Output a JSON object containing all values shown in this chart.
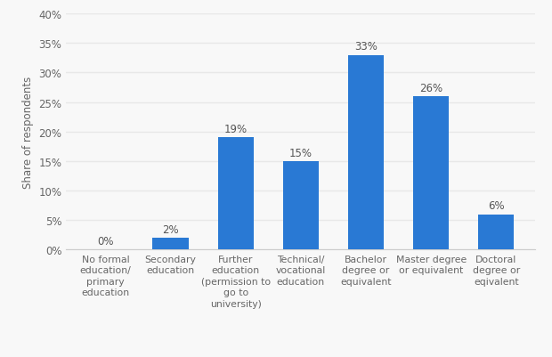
{
  "categories": [
    "No formal\neducation/\nprimary\neducation",
    "Secondary\neducation",
    "Further\neducation\n(permission to\ngo to\nuniversity)",
    "Technical/\nvocational\neducation",
    "Bachelor\ndegree or\nequivalent",
    "Master degree\nor equivalent",
    "Doctoral\ndegree or\neqivalent"
  ],
  "values": [
    0,
    2,
    19,
    15,
    33,
    26,
    6
  ],
  "bar_color": "#2979d4",
  "ylabel": "Share of respondents",
  "ylim": [
    0,
    40
  ],
  "yticks": [
    0,
    5,
    10,
    15,
    20,
    25,
    30,
    35,
    40
  ],
  "ytick_labels": [
    "0%",
    "5%",
    "10%",
    "15%",
    "20%",
    "25%",
    "30%",
    "35%",
    "40%"
  ],
  "label_fontsize": 8.5,
  "bar_label_fontsize": 8.5,
  "xlabel_fontsize": 7.8,
  "ylabel_fontsize": 8.5,
  "background_color": "#f8f8f8",
  "grid_color": "#e8e8e8",
  "bar_width": 0.55
}
